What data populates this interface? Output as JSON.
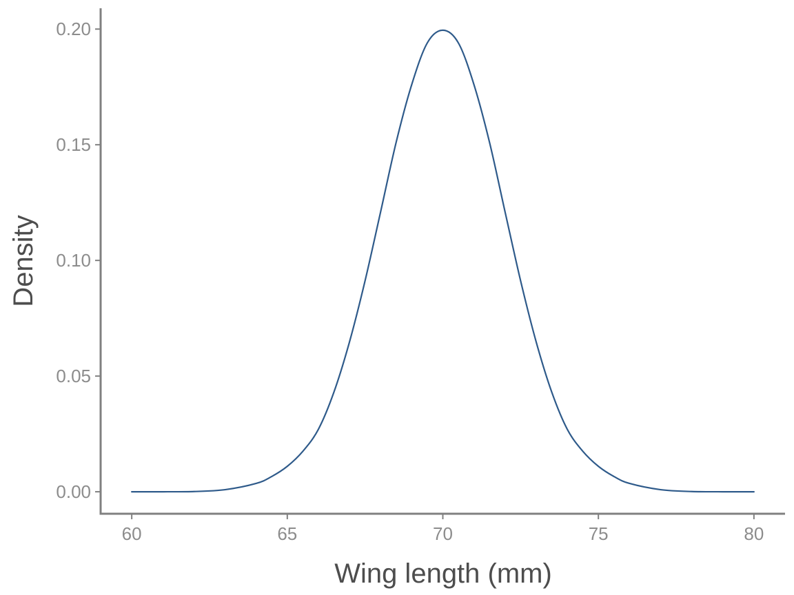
{
  "chart_data": {
    "type": "line",
    "title": "",
    "xlabel": "Wing length (mm)",
    "ylabel": "Density",
    "xlim": [
      59,
      81
    ],
    "ylim": [
      -0.0095,
      0.209
    ],
    "x_ticks": [
      60,
      65,
      70,
      75,
      80
    ],
    "x_tick_labels": [
      "60",
      "65",
      "70",
      "75",
      "80"
    ],
    "y_ticks": [
      0.0,
      0.05,
      0.1,
      0.15,
      0.2
    ],
    "y_tick_labels": [
      "0.00",
      "0.05",
      "0.10",
      "0.15",
      "0.20"
    ],
    "grid": false,
    "legend": "none",
    "series": [
      {
        "color": "#2e5a8a",
        "x": [
          60,
          61,
          62,
          63,
          64,
          64.5,
          65,
          65.5,
          66,
          66.5,
          67,
          67.5,
          68,
          68.5,
          69,
          69.5,
          70,
          70.5,
          71,
          71.5,
          72,
          72.5,
          73,
          73.5,
          74,
          74.5,
          75,
          75.5,
          76,
          77,
          78,
          79,
          80
        ],
        "y": [
          0.0,
          0.0,
          0.0001,
          0.0009,
          0.0036,
          0.0066,
          0.011,
          0.0175,
          0.027,
          0.0431,
          0.0648,
          0.0912,
          0.121,
          0.1511,
          0.176,
          0.194,
          0.1995,
          0.194,
          0.176,
          0.1511,
          0.121,
          0.0912,
          0.0648,
          0.0431,
          0.027,
          0.0175,
          0.011,
          0.0066,
          0.0036,
          0.0009,
          0.0001,
          0.0,
          0.0
        ]
      }
    ]
  },
  "colors": {
    "line": "#2e5a8a",
    "axis": "#808080",
    "tick_label": "#8c8c8c",
    "axis_title": "#4d4d4d",
    "background": "#ffffff"
  }
}
